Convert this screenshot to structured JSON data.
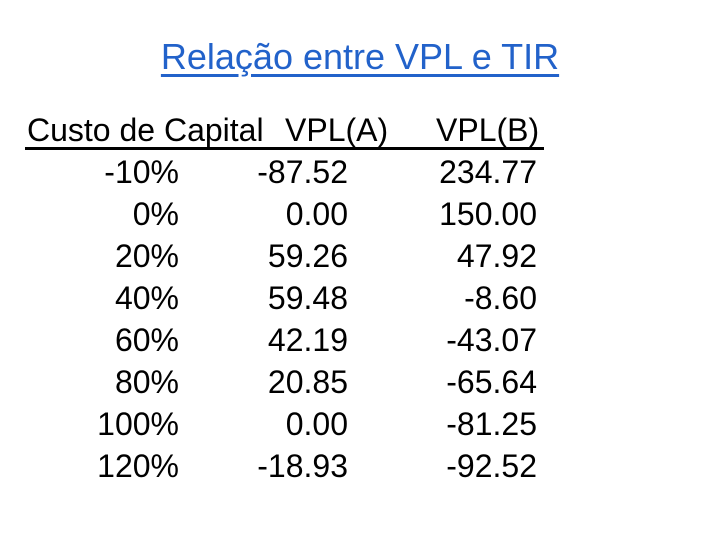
{
  "slide": {
    "title": "Relação entre VPL e TIR",
    "title_color": "#2262CA",
    "background_color": "#FFFFFF",
    "text_color": "#000000"
  },
  "table": {
    "headers": [
      "Custo de Capital",
      "VPL(A)",
      "VPL(B)"
    ],
    "rows": [
      [
        "-10%",
        "-87.52",
        "234.77"
      ],
      [
        "0%",
        "0.00",
        "150.00"
      ],
      [
        "20%",
        "59.26",
        "47.92"
      ],
      [
        "40%",
        "59.48",
        "-8.60"
      ],
      [
        "60%",
        "42.19",
        "-43.07"
      ],
      [
        "80%",
        "20.85",
        "-65.64"
      ],
      [
        "100%",
        "0.00",
        "-81.25"
      ],
      [
        "120%",
        "-18.93",
        "-92.52"
      ]
    ]
  },
  "chart_data": {
    "type": "table",
    "title": "Relação entre VPL e TIR",
    "columns": [
      "Custo de Capital",
      "VPL(A)",
      "VPL(B)"
    ],
    "rows": [
      [
        "-10%",
        -87.52,
        234.77
      ],
      [
        "0%",
        0.0,
        150.0
      ],
      [
        "20%",
        59.26,
        47.92
      ],
      [
        "40%",
        59.48,
        -8.6
      ],
      [
        "60%",
        42.19,
        -43.07
      ],
      [
        "80%",
        20.85,
        -65.64
      ],
      [
        "100%",
        0.0,
        -81.25
      ],
      [
        "120%",
        -18.93,
        -92.52
      ]
    ]
  }
}
